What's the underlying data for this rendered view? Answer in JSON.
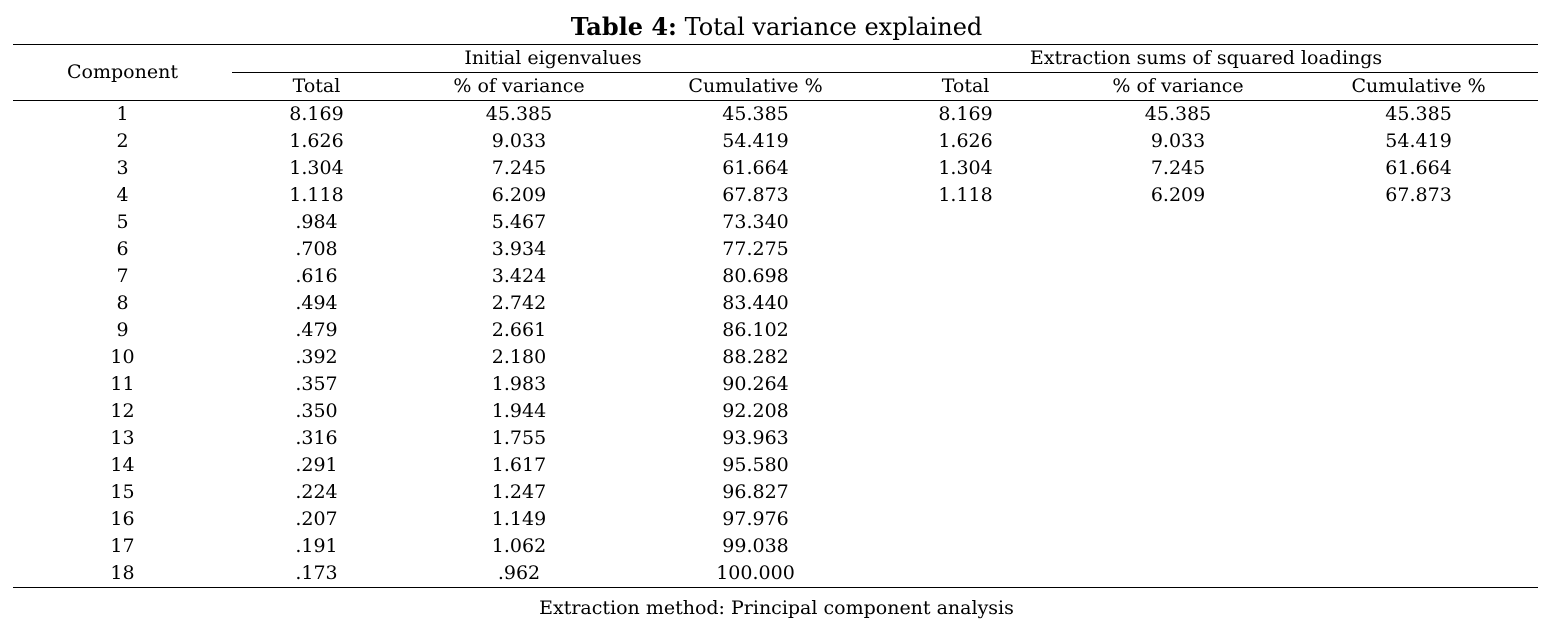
{
  "caption": {
    "label": "Table 4:",
    "title": "Total variance explained"
  },
  "headers": {
    "component": "Component",
    "initial_group": "Initial eigenvalues",
    "extraction_group": "Extraction sums of squared loadings",
    "subcols": [
      "Total",
      "% of variance",
      "Cumulative %",
      "Total",
      "% of variance",
      "Cumulative %"
    ]
  },
  "rows": [
    [
      "1",
      "8.169",
      "45.385",
      "45.385",
      "8.169",
      "45.385",
      "45.385"
    ],
    [
      "2",
      "1.626",
      "9.033",
      "54.419",
      "1.626",
      "9.033",
      "54.419"
    ],
    [
      "3",
      "1.304",
      "7.245",
      "61.664",
      "1.304",
      "7.245",
      "61.664"
    ],
    [
      "4",
      "1.118",
      "6.209",
      "67.873",
      "1.118",
      "6.209",
      "67.873"
    ],
    [
      "5",
      ".984",
      "5.467",
      "73.340",
      "",
      "",
      ""
    ],
    [
      "6",
      ".708",
      "3.934",
      "77.275",
      "",
      "",
      ""
    ],
    [
      "7",
      ".616",
      "3.424",
      "80.698",
      "",
      "",
      ""
    ],
    [
      "8",
      ".494",
      "2.742",
      "83.440",
      "",
      "",
      ""
    ],
    [
      "9",
      ".479",
      "2.661",
      "86.102",
      "",
      "",
      ""
    ],
    [
      "10",
      ".392",
      "2.180",
      "88.282",
      "",
      "",
      ""
    ],
    [
      "11",
      ".357",
      "1.983",
      "90.264",
      "",
      "",
      ""
    ],
    [
      "12",
      ".350",
      "1.944",
      "92.208",
      "",
      "",
      ""
    ],
    [
      "13",
      ".316",
      "1.755",
      "93.963",
      "",
      "",
      ""
    ],
    [
      "14",
      ".291",
      "1.617",
      "95.580",
      "",
      "",
      ""
    ],
    [
      "15",
      ".224",
      "1.247",
      "96.827",
      "",
      "",
      ""
    ],
    [
      "16",
      ".207",
      "1.149",
      "97.976",
      "",
      "",
      ""
    ],
    [
      "17",
      ".191",
      "1.062",
      "99.038",
      "",
      "",
      ""
    ],
    [
      "18",
      ".173",
      ".962",
      "100.000",
      "",
      "",
      ""
    ]
  ],
  "footnote": "Extraction method: Principal component analysis"
}
